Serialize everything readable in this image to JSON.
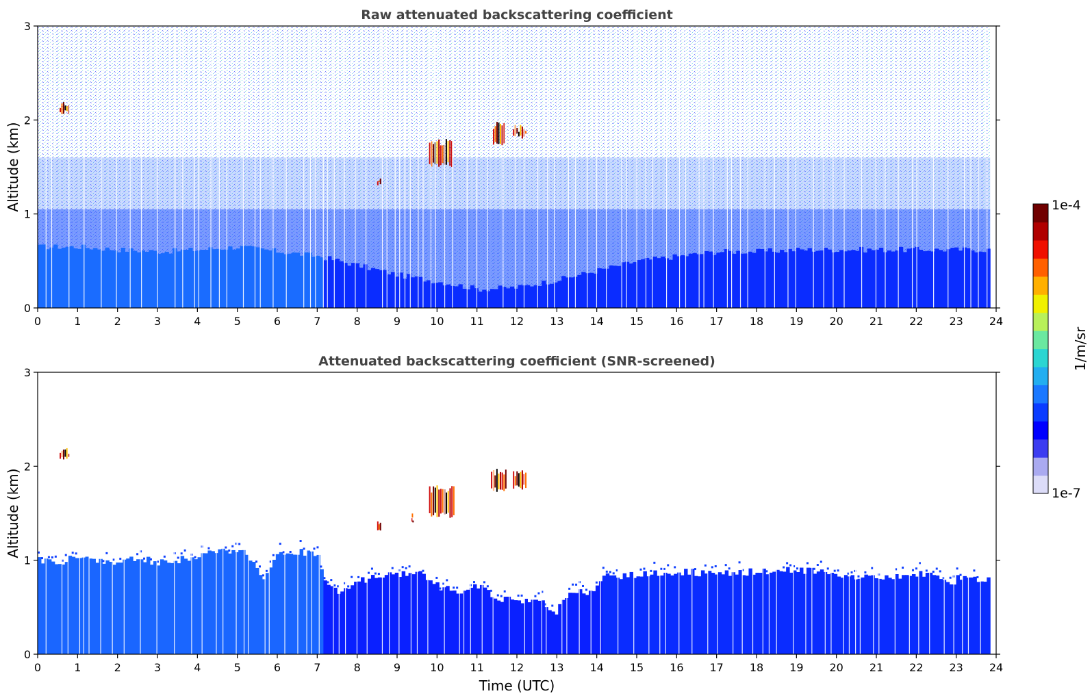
{
  "chart_data": [
    {
      "type": "heatmap",
      "title": "Raw attenuated backscattering coefficient",
      "xlabel": "",
      "ylabel": "Altitude (km)",
      "xlim": [
        0,
        24
      ],
      "ylim": [
        0,
        3
      ],
      "x_ticks": [
        "0",
        "1",
        "2",
        "3",
        "4",
        "5",
        "6",
        "7",
        "8",
        "9",
        "10",
        "11",
        "12",
        "13",
        "14",
        "15",
        "16",
        "17",
        "18",
        "19",
        "20",
        "21",
        "22",
        "23",
        "24"
      ],
      "y_ticks": [
        "0",
        "1",
        "2",
        "3"
      ],
      "data_extent_x": [
        0,
        23.85
      ],
      "dense_layer_top_km": [
        [
          0,
          0.65
        ],
        [
          1,
          0.65
        ],
        [
          2,
          0.62
        ],
        [
          3,
          0.6
        ],
        [
          4,
          0.62
        ],
        [
          5,
          0.65
        ],
        [
          6,
          0.6
        ],
        [
          7,
          0.55
        ],
        [
          8,
          0.45
        ],
        [
          9,
          0.35
        ],
        [
          10,
          0.28
        ],
        [
          11,
          0.2
        ],
        [
          12,
          0.22
        ],
        [
          13,
          0.3
        ],
        [
          14,
          0.4
        ],
        [
          15,
          0.5
        ],
        [
          16,
          0.55
        ],
        [
          17,
          0.6
        ],
        [
          18,
          0.6
        ],
        [
          19,
          0.62
        ],
        [
          20,
          0.62
        ],
        [
          21,
          0.62
        ],
        [
          22,
          0.62
        ],
        [
          23,
          0.62
        ],
        [
          23.85,
          0.62
        ]
      ],
      "cloud_features": [
        {
          "time_start": 0.55,
          "time_end": 0.8,
          "alt_bottom_km": 2.05,
          "alt_top_km": 2.2
        },
        {
          "time_start": 8.5,
          "time_end": 8.6,
          "alt_bottom_km": 1.3,
          "alt_top_km": 1.4
        },
        {
          "time_start": 9.8,
          "time_end": 10.4,
          "alt_bottom_km": 1.5,
          "alt_top_km": 1.8
        },
        {
          "time_start": 11.4,
          "time_end": 11.7,
          "alt_bottom_km": 1.72,
          "alt_top_km": 1.98
        },
        {
          "time_start": 11.9,
          "time_end": 12.25,
          "alt_bottom_km": 1.8,
          "alt_top_km": 1.95
        }
      ]
    },
    {
      "type": "heatmap",
      "title": "Attenuated backscattering coefficient (SNR-screened)",
      "xlabel": "Time (UTC)",
      "ylabel": "Altitude (km)",
      "xlim": [
        0,
        24
      ],
      "ylim": [
        0,
        3
      ],
      "x_ticks": [
        "0",
        "1",
        "2",
        "3",
        "4",
        "5",
        "6",
        "7",
        "8",
        "9",
        "10",
        "11",
        "12",
        "13",
        "14",
        "15",
        "16",
        "17",
        "18",
        "19",
        "20",
        "21",
        "22",
        "23",
        "24"
      ],
      "y_ticks": [
        "0",
        "1",
        "2",
        "3"
      ],
      "data_extent_x": [
        0,
        23.85
      ],
      "boundary_layer_top_km": [
        [
          0,
          1.0
        ],
        [
          0.5,
          0.98
        ],
        [
          1,
          1.05
        ],
        [
          1.5,
          1.0
        ],
        [
          2,
          0.98
        ],
        [
          2.5,
          1.02
        ],
        [
          3,
          0.97
        ],
        [
          3.5,
          1.0
        ],
        [
          4,
          1.05
        ],
        [
          4.5,
          1.08
        ],
        [
          5,
          1.12
        ],
        [
          5.3,
          1.0
        ],
        [
          5.6,
          0.82
        ],
        [
          6,
          1.05
        ],
        [
          6.5,
          1.1
        ],
        [
          7,
          1.05
        ],
        [
          7.2,
          0.72
        ],
        [
          7.5,
          0.68
        ],
        [
          8,
          0.78
        ],
        [
          8.5,
          0.82
        ],
        [
          9,
          0.85
        ],
        [
          9.5,
          0.9
        ],
        [
          10,
          0.72
        ],
        [
          10.5,
          0.68
        ],
        [
          11,
          0.72
        ],
        [
          11.5,
          0.6
        ],
        [
          12,
          0.55
        ],
        [
          12.5,
          0.6
        ],
        [
          12.9,
          0.42
        ],
        [
          13.3,
          0.7
        ],
        [
          13.8,
          0.65
        ],
        [
          14.2,
          0.85
        ],
        [
          14.6,
          0.82
        ],
        [
          15,
          0.85
        ],
        [
          16,
          0.88
        ],
        [
          17,
          0.85
        ],
        [
          18,
          0.88
        ],
        [
          19,
          0.9
        ],
        [
          20,
          0.85
        ],
        [
          21,
          0.8
        ],
        [
          21.5,
          0.82
        ],
        [
          22,
          0.85
        ],
        [
          22.5,
          0.85
        ],
        [
          22.8,
          0.72
        ],
        [
          23,
          0.82
        ],
        [
          23.5,
          0.8
        ],
        [
          23.85,
          0.78
        ]
      ],
      "cloud_features": [
        {
          "time_start": 0.55,
          "time_end": 0.8,
          "alt_bottom_km": 2.05,
          "alt_top_km": 2.2
        },
        {
          "time_start": 8.5,
          "time_end": 8.6,
          "alt_bottom_km": 1.28,
          "alt_top_km": 1.45
        },
        {
          "time_start": 9.35,
          "time_end": 9.4,
          "alt_bottom_km": 1.4,
          "alt_top_km": 1.5
        },
        {
          "time_start": 9.8,
          "time_end": 10.45,
          "alt_bottom_km": 1.45,
          "alt_top_km": 1.8
        },
        {
          "time_start": 11.35,
          "time_end": 11.75,
          "alt_bottom_km": 1.72,
          "alt_top_km": 1.98
        },
        {
          "time_start": 11.9,
          "time_end": 12.25,
          "alt_bottom_km": 1.75,
          "alt_top_km": 1.97
        }
      ]
    }
  ],
  "colorbar": {
    "label": "1/m/sr",
    "max_label": "1e-4",
    "min_label": "1e-7",
    "scale": "log",
    "range": [
      1e-07,
      0.0001
    ],
    "colormap": [
      "#dcdcf8",
      "#aaaaf0",
      "#3c3cf0",
      "#0000ff",
      "#0a3cff",
      "#1a78ff",
      "#22aef0",
      "#2bd6d2",
      "#6be8a0",
      "#b8f05a",
      "#f0f000",
      "#ffb000",
      "#ff6000",
      "#f01000",
      "#b00000",
      "#700000"
    ]
  }
}
